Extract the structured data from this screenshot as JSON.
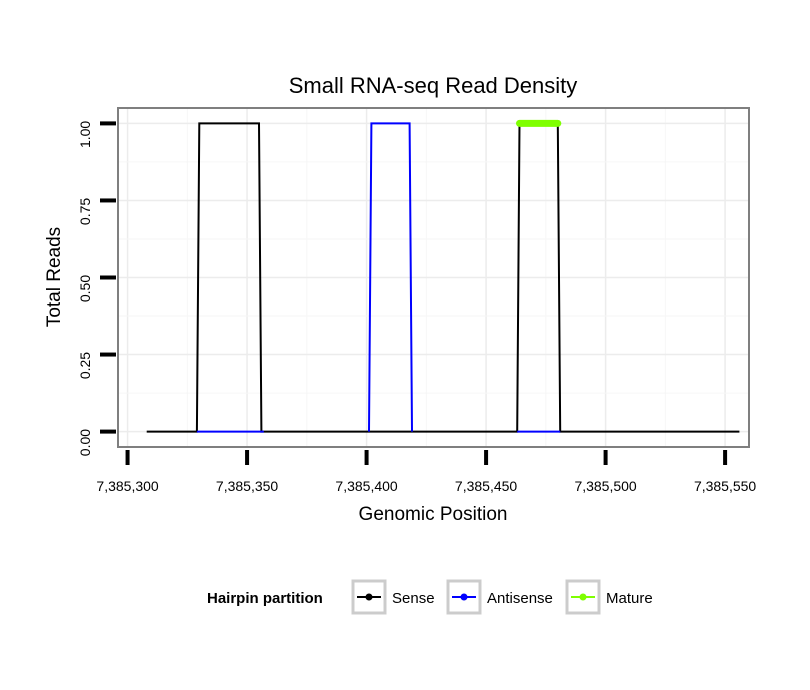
{
  "chart_data": {
    "type": "line",
    "title": "Small RNA-seq Read Density",
    "xlabel": "Genomic Position",
    "ylabel": "Total Reads",
    "xlim": [
      7385296,
      7385560
    ],
    "ylim": [
      -0.05,
      1.05
    ],
    "x_ticks": [
      7385300,
      7385350,
      7385400,
      7385450,
      7385500,
      7385550
    ],
    "x_tick_labels": [
      "7,385,300",
      "7,385,350",
      "7,385,400",
      "7,385,450",
      "7,385,500",
      "7,385,550"
    ],
    "y_ticks": [
      0.0,
      0.25,
      0.5,
      0.75,
      1.0
    ],
    "y_tick_labels": [
      "0.00",
      "0.25",
      "0.50",
      "0.75",
      "1.00"
    ],
    "grid": true,
    "legend": {
      "title": "Hairpin partition",
      "position": "bottom"
    },
    "series": [
      {
        "name": "Sense",
        "color": "#000000",
        "points": [
          [
            7385308,
            0
          ],
          [
            7385329,
            0
          ],
          [
            7385330,
            1
          ],
          [
            7385355,
            1
          ],
          [
            7385356,
            0
          ],
          [
            7385463,
            0
          ],
          [
            7385464,
            1
          ],
          [
            7385480,
            1
          ],
          [
            7385481,
            0
          ],
          [
            7385556,
            0
          ]
        ]
      },
      {
        "name": "Antisense",
        "color": "#0000ff",
        "points": [
          [
            7385329,
            0
          ],
          [
            7385357,
            0
          ],
          [
            7385401,
            0
          ],
          [
            7385402,
            1
          ],
          [
            7385418,
            1
          ],
          [
            7385419,
            0
          ],
          [
            7385463,
            0
          ],
          [
            7385481,
            0
          ]
        ],
        "segments": [
          [
            0,
            1
          ],
          [
            2,
            3,
            4,
            5
          ],
          [
            6,
            7
          ]
        ]
      },
      {
        "name": "Mature",
        "color": "#7fff00",
        "points": [
          [
            7385464,
            1
          ],
          [
            7385480,
            1
          ]
        ]
      }
    ]
  }
}
